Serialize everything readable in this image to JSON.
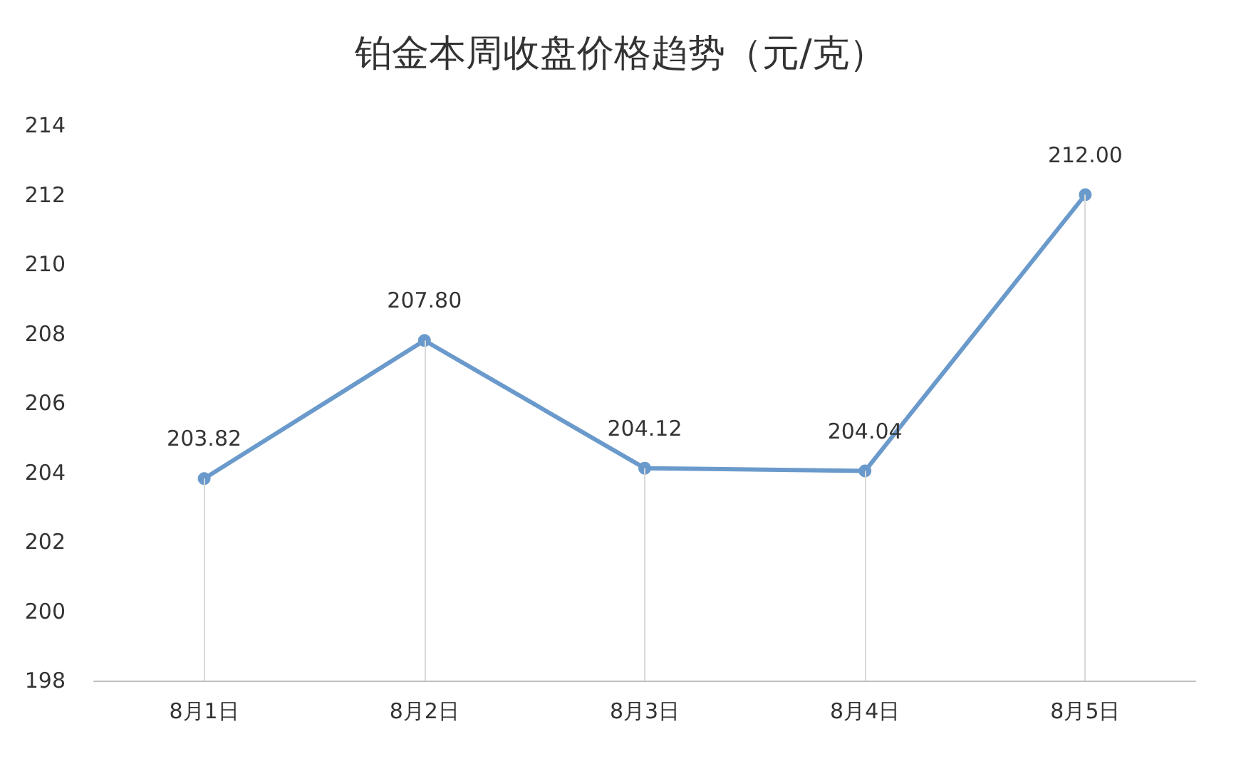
{
  "chart_data": {
    "type": "line",
    "title": "铂金本周收盘价格趋势（元/克）",
    "categories": [
      "8月1日",
      "8月2日",
      "8月3日",
      "8月4日",
      "8月5日"
    ],
    "series": [
      {
        "color": "#6a9acb",
        "values": [
          203.82,
          207.8,
          204.12,
          204.04,
          212.0
        ],
        "value_labels": [
          "203.82",
          "207.80",
          "204.12",
          "204.04",
          "212.00"
        ]
      }
    ],
    "ylim": [
      198,
      214
    ],
    "yticks": [
      198,
      200,
      202,
      204,
      206,
      208,
      210,
      212,
      214
    ],
    "grid": "x",
    "marker": "circle",
    "line_style": "solid"
  }
}
